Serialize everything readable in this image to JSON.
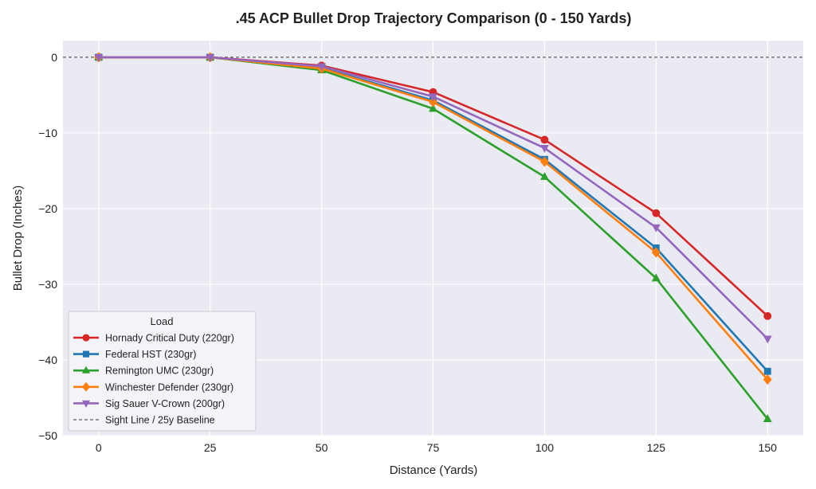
{
  "chart_data": {
    "type": "line",
    "title": ".45 ACP Bullet Drop Trajectory Comparison (0 - 150 Yards)",
    "xlabel": "Distance (Yards)",
    "ylabel": "Bullet Drop (Inches)",
    "x": [
      0,
      25,
      50,
      75,
      100,
      125,
      150
    ],
    "xlim": [
      -8,
      158
    ],
    "ylim": [
      -50,
      2.2
    ],
    "xticks": [
      0,
      25,
      50,
      75,
      100,
      125,
      150
    ],
    "yticks": [
      0,
      -10,
      -20,
      -30,
      -40,
      -50
    ],
    "xtick_labels": [
      "0",
      "25",
      "50",
      "75",
      "100",
      "125",
      "150"
    ],
    "ytick_labels": [
      "0",
      "−10",
      "−20",
      "−30",
      "−40",
      "−50"
    ],
    "grid": true,
    "legend": {
      "title": "Load",
      "position": "lower-left"
    },
    "series": [
      {
        "name": "Hornady Critical Duty (220gr)",
        "color": "#d62728",
        "marker": "circle",
        "values": [
          0,
          0,
          -1.1,
          -4.6,
          -10.9,
          -20.6,
          -34.2
        ]
      },
      {
        "name": "Federal HST (230gr)",
        "color": "#1f77b4",
        "marker": "square",
        "values": [
          0,
          0,
          -1.4,
          -5.7,
          -13.5,
          -25.2,
          -41.5
        ]
      },
      {
        "name": "Remington UMC (230gr)",
        "color": "#2ca02c",
        "marker": "triangle-up",
        "values": [
          0,
          0,
          -1.7,
          -6.8,
          -15.8,
          -29.2,
          -47.8
        ]
      },
      {
        "name": "Winchester Defender (230gr)",
        "color": "#ff7f0e",
        "marker": "diamond",
        "values": [
          0,
          0,
          -1.5,
          -5.9,
          -13.8,
          -25.8,
          -42.6
        ]
      },
      {
        "name": "Sig Sauer V-Crown (200gr)",
        "color": "#9467bd",
        "marker": "triangle-down",
        "values": [
          0,
          0,
          -1.2,
          -5.2,
          -12.0,
          -22.5,
          -37.2
        ]
      }
    ],
    "reference_line": {
      "name": "Sight Line / 25y Baseline",
      "y": 0,
      "color": "#333333",
      "style": "dashed"
    }
  }
}
